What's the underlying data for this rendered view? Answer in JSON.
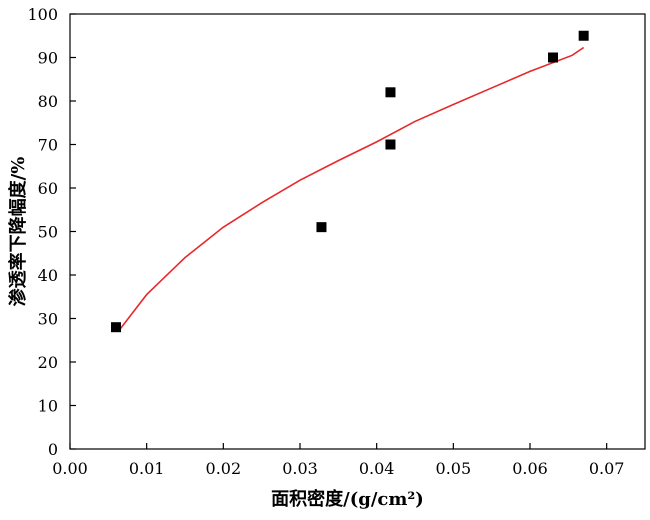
{
  "chart_data": {
    "type": "scatter",
    "title": "",
    "xlabel": "面积密度/(g/cm²)",
    "ylabel": "渗透率下降幅度/%",
    "xlim": [
      0.0,
      0.075
    ],
    "ylim": [
      0,
      100
    ],
    "x_ticks": [
      0.0,
      0.01,
      0.02,
      0.03,
      0.04,
      0.05,
      0.06,
      0.07
    ],
    "x_tick_labels": [
      "0.00",
      "0.01",
      "0.02",
      "0.03",
      "0.04",
      "0.05",
      "0.06",
      "0.07"
    ],
    "y_ticks": [
      0,
      10,
      20,
      30,
      40,
      50,
      60,
      70,
      80,
      90,
      100
    ],
    "y_tick_labels": [
      "0",
      "10",
      "20",
      "30",
      "40",
      "50",
      "60",
      "70",
      "80",
      "90",
      "100"
    ],
    "grid": false,
    "legend": "none",
    "series": [
      {
        "type": "scatter",
        "marker": "square",
        "color": "#000000",
        "points": [
          {
            "x": 0.006,
            "y": 28
          },
          {
            "x": 0.0328,
            "y": 51
          },
          {
            "x": 0.0418,
            "y": 82
          },
          {
            "x": 0.0418,
            "y": 70
          },
          {
            "x": 0.063,
            "y": 90
          },
          {
            "x": 0.067,
            "y": 95
          }
        ]
      },
      {
        "type": "line",
        "style": "fitted-curve",
        "color": "#e8282a",
        "points": [
          {
            "x": 0.0065,
            "y": 27.5
          },
          {
            "x": 0.01,
            "y": 35.5
          },
          {
            "x": 0.015,
            "y": 44.0
          },
          {
            "x": 0.02,
            "y": 51.0
          },
          {
            "x": 0.025,
            "y": 56.6
          },
          {
            "x": 0.03,
            "y": 61.8
          },
          {
            "x": 0.035,
            "y": 66.3
          },
          {
            "x": 0.04,
            "y": 70.6
          },
          {
            "x": 0.045,
            "y": 75.3
          },
          {
            "x": 0.05,
            "y": 79.2
          },
          {
            "x": 0.055,
            "y": 83.0
          },
          {
            "x": 0.06,
            "y": 86.8
          },
          {
            "x": 0.0655,
            "y": 90.5
          },
          {
            "x": 0.067,
            "y": 92.3
          }
        ]
      }
    ]
  }
}
